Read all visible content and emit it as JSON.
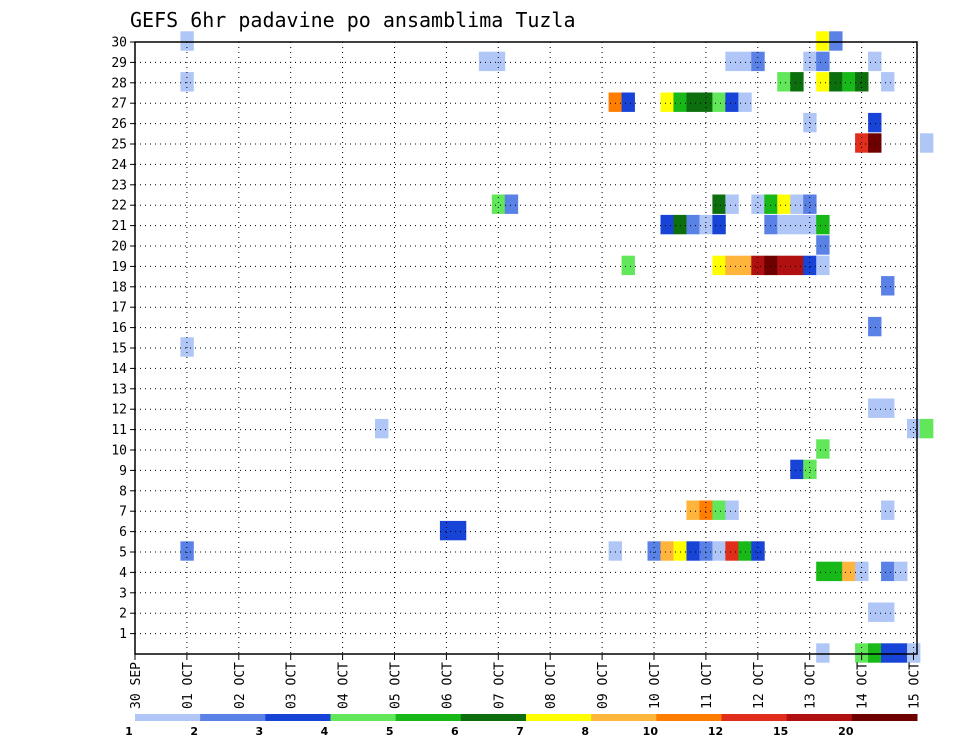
{
  "chart_data": {
    "type": "heatmap",
    "title": "GEFS 6hr padavine po ansamblima Tuzla",
    "xlabel": "",
    "ylabel": "",
    "grid": true,
    "x_ticks": [
      "30 SEP",
      "01 OCT",
      "02 OCT",
      "03 OCT",
      "04 OCT",
      "05 OCT",
      "06 OCT",
      "07 OCT",
      "08 OCT",
      "09 OCT",
      "10 OCT",
      "11 OCT",
      "12 OCT",
      "13 OCT",
      "14 OCT",
      "15 OCT"
    ],
    "y_ticks": [
      "1",
      "2",
      "3",
      "4",
      "5",
      "6",
      "7",
      "8",
      "9",
      "10",
      "11",
      "12",
      "13",
      "14",
      "15",
      "16",
      "17",
      "18",
      "19",
      "20",
      "21",
      "22",
      "23",
      "24",
      "25",
      "26",
      "27",
      "28",
      "29",
      "30"
    ],
    "x_range": [
      0,
      61
    ],
    "y_range": [
      0,
      30
    ],
    "legend": {
      "position": "bottom",
      "labels": [
        "1",
        "2",
        "3",
        "4",
        "5",
        "6",
        "7",
        "8",
        "10",
        "12",
        "15",
        "20"
      ],
      "colors": [
        "#afc6f7",
        "#5a82e6",
        "#1744d6",
        "#62e65a",
        "#17b817",
        "#0d6e0d",
        "#ffff00",
        "#ffb43c",
        "#ff7d00",
        "#e02d1c",
        "#b01010",
        "#6e0000"
      ]
    },
    "note_units": "x = 6-hour step index from 30 SEP 00Z, y = ensemble member, c = precipitation class (0-11)",
    "cells": [
      [
        4,
        30,
        0
      ],
      [
        53,
        30,
        6
      ],
      [
        54,
        30,
        1
      ],
      [
        27,
        29,
        0
      ],
      [
        28,
        29,
        0
      ],
      [
        46,
        29,
        0
      ],
      [
        47,
        29,
        0
      ],
      [
        48,
        29,
        1
      ],
      [
        52,
        29,
        0
      ],
      [
        53,
        29,
        1
      ],
      [
        57,
        29,
        0
      ],
      [
        4,
        28,
        0
      ],
      [
        50,
        28,
        3
      ],
      [
        51,
        28,
        5
      ],
      [
        53,
        28,
        6
      ],
      [
        54,
        28,
        5
      ],
      [
        55,
        28,
        4
      ],
      [
        56,
        28,
        5
      ],
      [
        58,
        28,
        0
      ],
      [
        37,
        27,
        8
      ],
      [
        38,
        27,
        2
      ],
      [
        41,
        27,
        6
      ],
      [
        42,
        27,
        4
      ],
      [
        43,
        27,
        5
      ],
      [
        44,
        27,
        5
      ],
      [
        45,
        27,
        3
      ],
      [
        46,
        27,
        2
      ],
      [
        47,
        27,
        0
      ],
      [
        57,
        26,
        2
      ],
      [
        52,
        26,
        0
      ],
      [
        56,
        25,
        9
      ],
      [
        57,
        25,
        11
      ],
      [
        61,
        25,
        0
      ],
      [
        28,
        22,
        3
      ],
      [
        29,
        22,
        1
      ],
      [
        45,
        22,
        5
      ],
      [
        46,
        22,
        0
      ],
      [
        48,
        22,
        0
      ],
      [
        49,
        22,
        4
      ],
      [
        50,
        22,
        6
      ],
      [
        51,
        22,
        0
      ],
      [
        52,
        22,
        1
      ],
      [
        41,
        21,
        2
      ],
      [
        42,
        21,
        5
      ],
      [
        43,
        21,
        1
      ],
      [
        44,
        21,
        0
      ],
      [
        45,
        21,
        2
      ],
      [
        49,
        21,
        1
      ],
      [
        50,
        21,
        0
      ],
      [
        51,
        21,
        0
      ],
      [
        52,
        21,
        0
      ],
      [
        53,
        21,
        4
      ],
      [
        53,
        20,
        1
      ],
      [
        38,
        19,
        3
      ],
      [
        45,
        19,
        6
      ],
      [
        46,
        19,
        7
      ],
      [
        47,
        19,
        7
      ],
      [
        48,
        19,
        10
      ],
      [
        49,
        19,
        11
      ],
      [
        50,
        19,
        10
      ],
      [
        51,
        19,
        10
      ],
      [
        52,
        19,
        2
      ],
      [
        53,
        19,
        0
      ],
      [
        58,
        18,
        1
      ],
      [
        57,
        16,
        1
      ],
      [
        4,
        15,
        0
      ],
      [
        57,
        12,
        0
      ],
      [
        58,
        12,
        0
      ],
      [
        19,
        11,
        0
      ],
      [
        60,
        11,
        0
      ],
      [
        61,
        11,
        3
      ],
      [
        53,
        10,
        3
      ],
      [
        51,
        9,
        2
      ],
      [
        52,
        9,
        3
      ],
      [
        43,
        7,
        7
      ],
      [
        44,
        7,
        8
      ],
      [
        45,
        7,
        3
      ],
      [
        46,
        7,
        0
      ],
      [
        58,
        7,
        0
      ],
      [
        24,
        6,
        2
      ],
      [
        25,
        6,
        2
      ],
      [
        4,
        5,
        1
      ],
      [
        37,
        5,
        0
      ],
      [
        40,
        5,
        1
      ],
      [
        41,
        5,
        7
      ],
      [
        42,
        5,
        6
      ],
      [
        43,
        5,
        2
      ],
      [
        44,
        5,
        1
      ],
      [
        45,
        5,
        0
      ],
      [
        46,
        5,
        9
      ],
      [
        47,
        5,
        4
      ],
      [
        48,
        5,
        2
      ],
      [
        53,
        4,
        4
      ],
      [
        54,
        4,
        4
      ],
      [
        55,
        4,
        7
      ],
      [
        56,
        4,
        0
      ],
      [
        58,
        4,
        1
      ],
      [
        59,
        4,
        0
      ],
      [
        57,
        2,
        0
      ],
      [
        58,
        2,
        0
      ],
      [
        53,
        0,
        0
      ],
      [
        56,
        0,
        3
      ],
      [
        57,
        0,
        4
      ],
      [
        58,
        0,
        2
      ],
      [
        59,
        0,
        2
      ],
      [
        60,
        0,
        0
      ]
    ]
  }
}
